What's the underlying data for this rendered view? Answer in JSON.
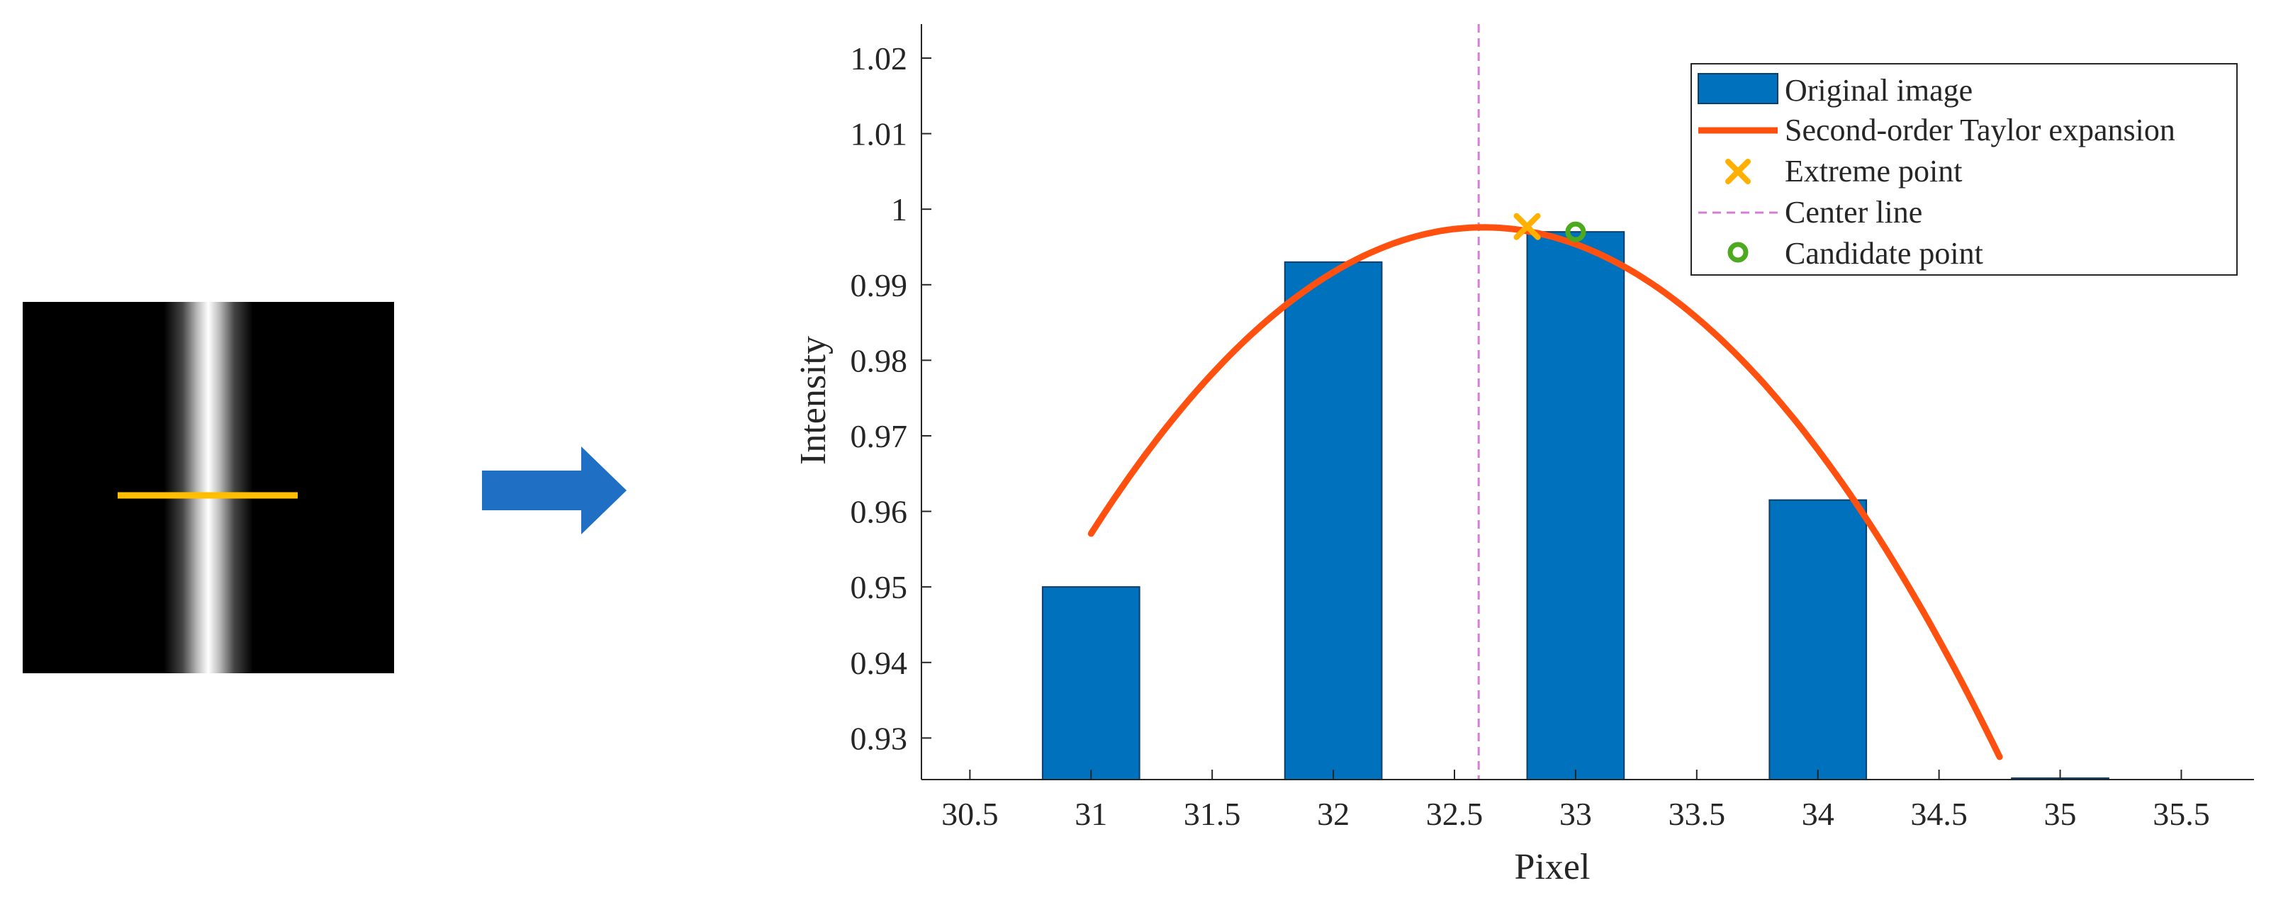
{
  "figure": {
    "colors": {
      "bar_fill": "#0072BD",
      "bar_stroke": "#0F3E6B",
      "fit_line": "#FF5010",
      "extreme_point": "#FFB000",
      "center_line": "#D47FD4",
      "candidate_point": "#4DAA1E",
      "arrow": "#1F6FC5",
      "stripe_marker": "#FFBF00",
      "axis": "#262626"
    }
  },
  "chart_data": {
    "type": "bar",
    "xlabel": "Pixel",
    "ylabel": "Intensity",
    "xlim": [
      30.3,
      35.8
    ],
    "ylim": [
      0.9245,
      1.0245
    ],
    "x_ticks": [
      30.5,
      31,
      31.5,
      32,
      32.5,
      33,
      33.5,
      34,
      34.5,
      35,
      35.5
    ],
    "x_tick_labels": [
      "30.5",
      "31",
      "31.5",
      "32",
      "32.5",
      "33",
      "33.5",
      "34",
      "34.5",
      "35",
      "35.5"
    ],
    "y_ticks": [
      0.93,
      0.94,
      0.95,
      0.96,
      0.97,
      0.98,
      0.99,
      1.0,
      1.01,
      1.02
    ],
    "y_tick_labels": [
      "0.93",
      "0.94",
      "0.95",
      "0.96",
      "0.97",
      "0.98",
      "0.99",
      "1",
      "1.01",
      "1.02"
    ],
    "bar_width": 0.4,
    "series": [
      {
        "name": "Original image",
        "kind": "bar",
        "x": [
          31,
          32,
          33,
          34,
          35
        ],
        "values": [
          0.95,
          0.993,
          0.997,
          0.9615,
          0.9245
        ]
      },
      {
        "name": "Second-order Taylor expansion",
        "kind": "line",
        "x_range": [
          31.0,
          34.75
        ],
        "vertex_x": 32.62,
        "vertex_y": 0.9976,
        "a": 0.01545
      },
      {
        "name": "Extreme point",
        "kind": "marker-x",
        "x": [
          32.8
        ],
        "values": [
          0.9977
        ]
      },
      {
        "name": "Center line",
        "kind": "vline",
        "x": 32.6
      },
      {
        "name": "Candidate point",
        "kind": "marker-o",
        "x": [
          33.0
        ],
        "values": [
          0.997
        ]
      }
    ],
    "legend": {
      "placement": "top-right",
      "entries": [
        "Original image",
        "Second-order Taylor expansion",
        "Extreme point",
        "Center line",
        "Candidate point"
      ]
    },
    "grid": false
  }
}
